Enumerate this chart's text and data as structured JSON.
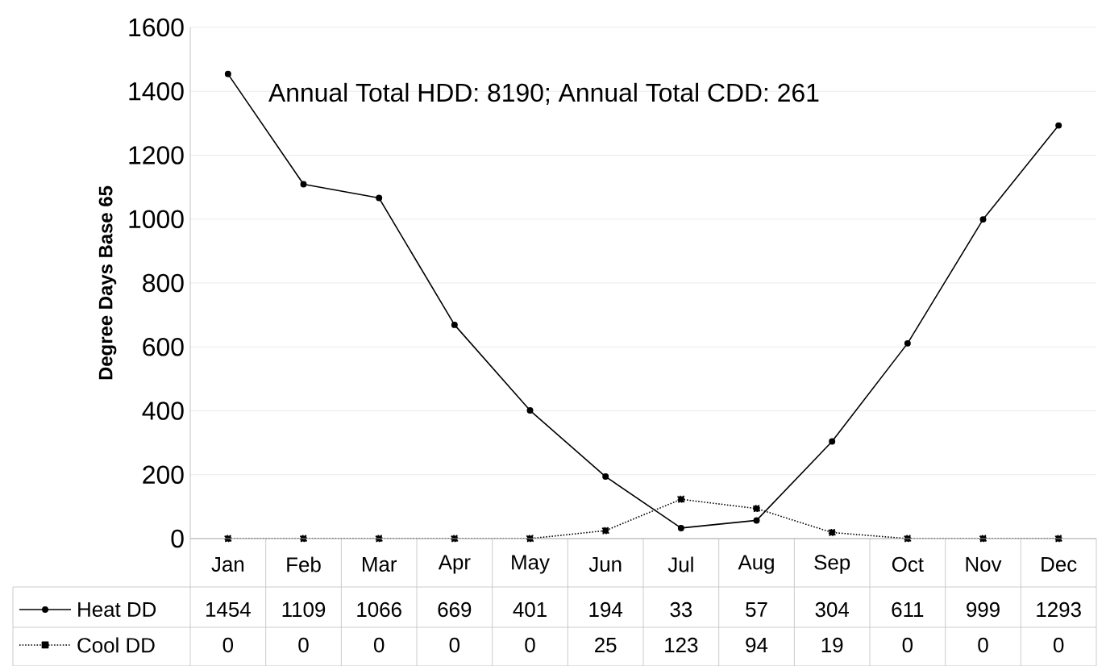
{
  "chart_data": {
    "type": "line",
    "ylabel": "Degree Days Base 65",
    "categories": [
      "Jan",
      "Feb",
      "Mar",
      "Apr",
      "May",
      "Jun",
      "Jul",
      "Aug",
      "Sep",
      "Oct",
      "Nov",
      "Dec"
    ],
    "series": [
      {
        "name": "Heat DD",
        "color": "#000000",
        "marker": "circle",
        "line_style": "solid",
        "values": [
          1454,
          1109,
          1066,
          669,
          401,
          194,
          33,
          57,
          304,
          611,
          999,
          1293
        ]
      },
      {
        "name": "Cool DD",
        "color": "#000000",
        "marker": "square",
        "line_style": "dotted",
        "values": [
          0,
          0,
          0,
          0,
          0,
          25,
          123,
          94,
          19,
          0,
          0,
          0
        ]
      }
    ],
    "ylim": [
      0,
      1600
    ],
    "yticks": [
      0,
      200,
      400,
      600,
      800,
      1000,
      1200,
      1400,
      1600
    ],
    "grid": "y",
    "data_labels": true,
    "legend": "bottom left",
    "annotations": [
      "Annual Total HDD: 8190; Annual Total CDD: 261"
    ]
  }
}
